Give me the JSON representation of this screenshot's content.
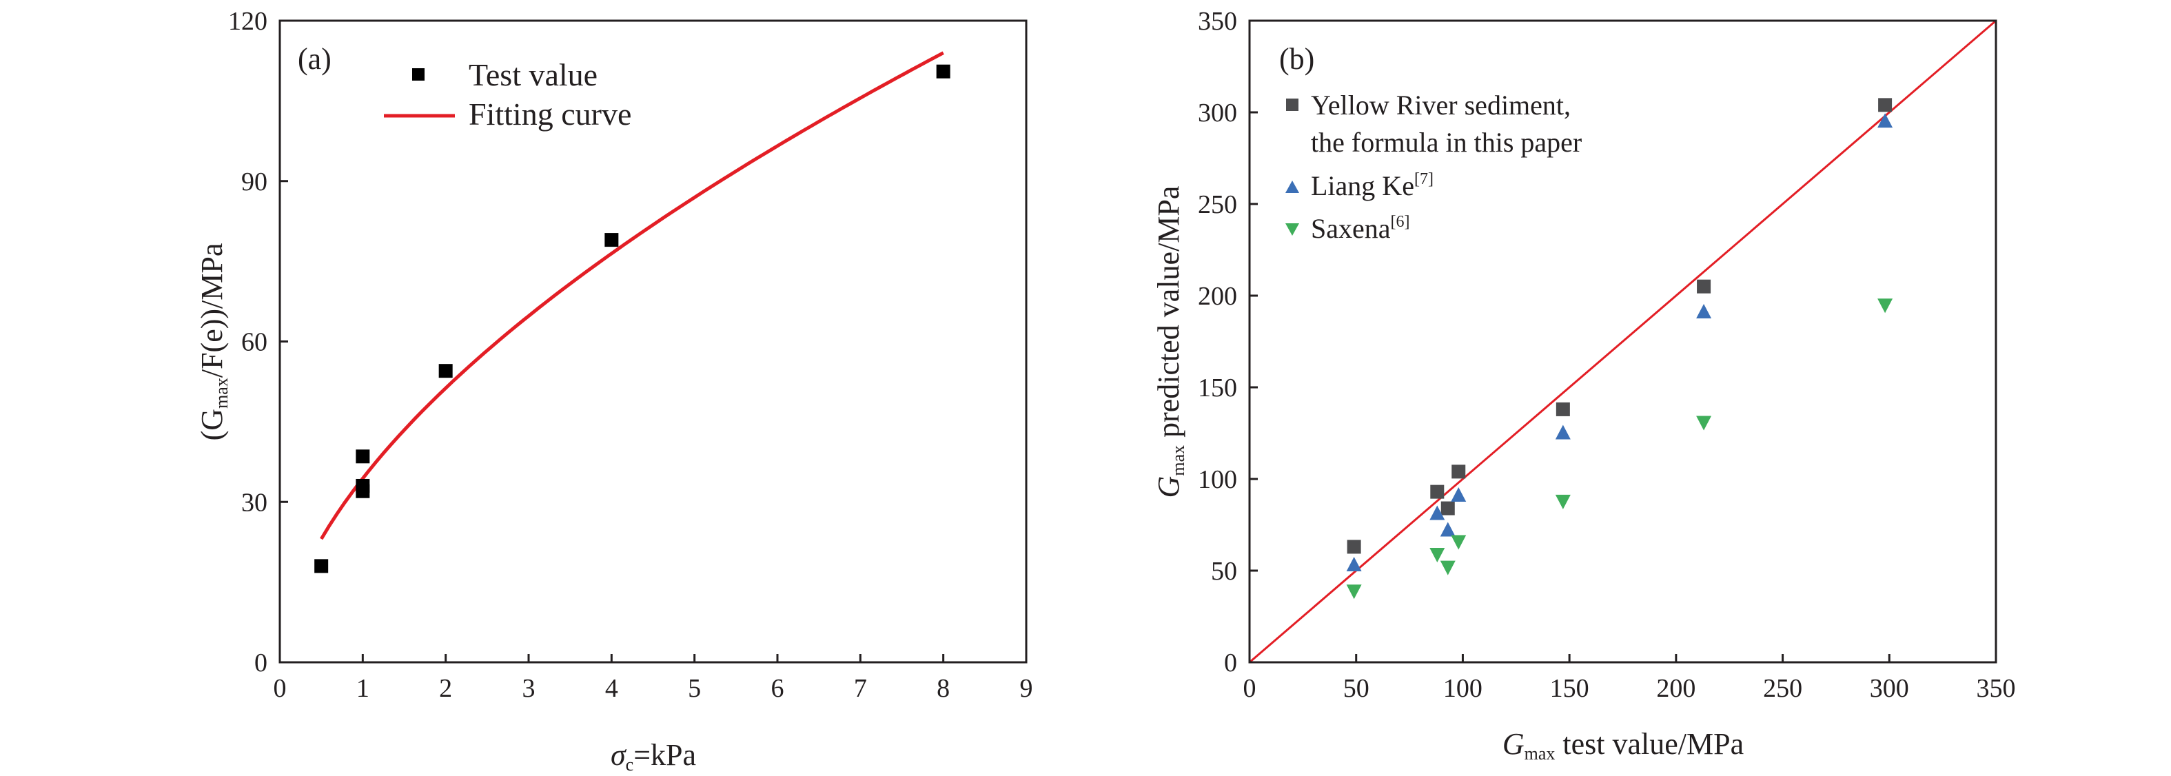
{
  "chart_data": [
    {
      "panel": "(a)",
      "type": "scatter",
      "x_label_symbol": "σ",
      "x_label_sub": "c",
      "x_label_rest": "=kPa",
      "y_label_pre": "(G",
      "y_label_sub": "max",
      "y_label_mid": "/F(e))/MPa",
      "xlim": [
        0,
        9
      ],
      "ylim": [
        0,
        120
      ],
      "x_ticks": [
        "0",
        "1",
        "2",
        "3",
        "4",
        "5",
        "6",
        "7",
        "8",
        "9"
      ],
      "y_ticks": [
        "0",
        "30",
        "60",
        "90",
        "120"
      ],
      "legend_position": "top-left",
      "series": [
        {
          "name": "Test value",
          "type": "scatter",
          "marker": "square",
          "color": "#000000",
          "points": [
            [
              0.5,
              18
            ],
            [
              1.0,
              38.5
            ],
            [
              1.0,
              33
            ],
            [
              1.0,
              32
            ],
            [
              2.0,
              54.5
            ],
            [
              4.0,
              79
            ],
            [
              8.0,
              110.5
            ]
          ]
        },
        {
          "name": "Fitting curve",
          "type": "line",
          "color": "#e31e25",
          "x_range": [
            0.5,
            8.0
          ],
          "points": [
            [
              0.5,
              23
            ],
            [
              0.75,
              29.1
            ],
            [
              1.0,
              34.4
            ],
            [
              1.5,
              43.5
            ],
            [
              2.0,
              51.4
            ],
            [
              3.0,
              64.9
            ],
            [
              4.0,
              76.6
            ],
            [
              5.0,
              87.2
            ],
            [
              6.0,
              96.9
            ],
            [
              7.0,
              105.9
            ],
            [
              8.0,
              112.5
            ]
          ]
        }
      ]
    },
    {
      "panel": "(b)",
      "type": "scatter",
      "x_label_pre": "G",
      "x_label_sub": "max",
      "x_label_rest": " test value/MPa",
      "y_label_pre": "G",
      "y_label_sub": "max",
      "y_label_rest": " predicted value/MPa",
      "xlim": [
        0,
        350
      ],
      "ylim": [
        0,
        350
      ],
      "x_ticks": [
        "0",
        "50",
        "100",
        "150",
        "200",
        "250",
        "300",
        "350"
      ],
      "y_ticks": [
        "0",
        "50",
        "100",
        "150",
        "200",
        "250",
        "300",
        "350"
      ],
      "legend_position": "top-left",
      "reference_line": {
        "type": "y=x",
        "color": "#e31e25"
      },
      "series": [
        {
          "name_line1": "Yellow River sediment,",
          "name_line2": "the formula in this paper",
          "marker": "square",
          "color": "#4d4d4f",
          "points": [
            [
              49,
              63
            ],
            [
              88,
              93
            ],
            [
              93,
              84
            ],
            [
              98,
              104
            ],
            [
              147,
              138
            ],
            [
              213,
              205
            ],
            [
              298,
              304
            ]
          ]
        },
        {
          "name": "Liang Ke",
          "ref": "[7]",
          "marker": "triangle-up",
          "color": "#3b6fb6",
          "points": [
            [
              49,
              53
            ],
            [
              88,
              81
            ],
            [
              93,
              72
            ],
            [
              98,
              91
            ],
            [
              147,
              125
            ],
            [
              213,
              191
            ],
            [
              298,
              295
            ]
          ]
        },
        {
          "name": "Saxena",
          "ref": "[6]",
          "marker": "triangle-down",
          "color": "#3fae5a",
          "points": [
            [
              49,
              39
            ],
            [
              88,
              59
            ],
            [
              93,
              52
            ],
            [
              98,
              66
            ],
            [
              147,
              88
            ],
            [
              213,
              131
            ],
            [
              298,
              195
            ]
          ]
        }
      ]
    }
  ]
}
